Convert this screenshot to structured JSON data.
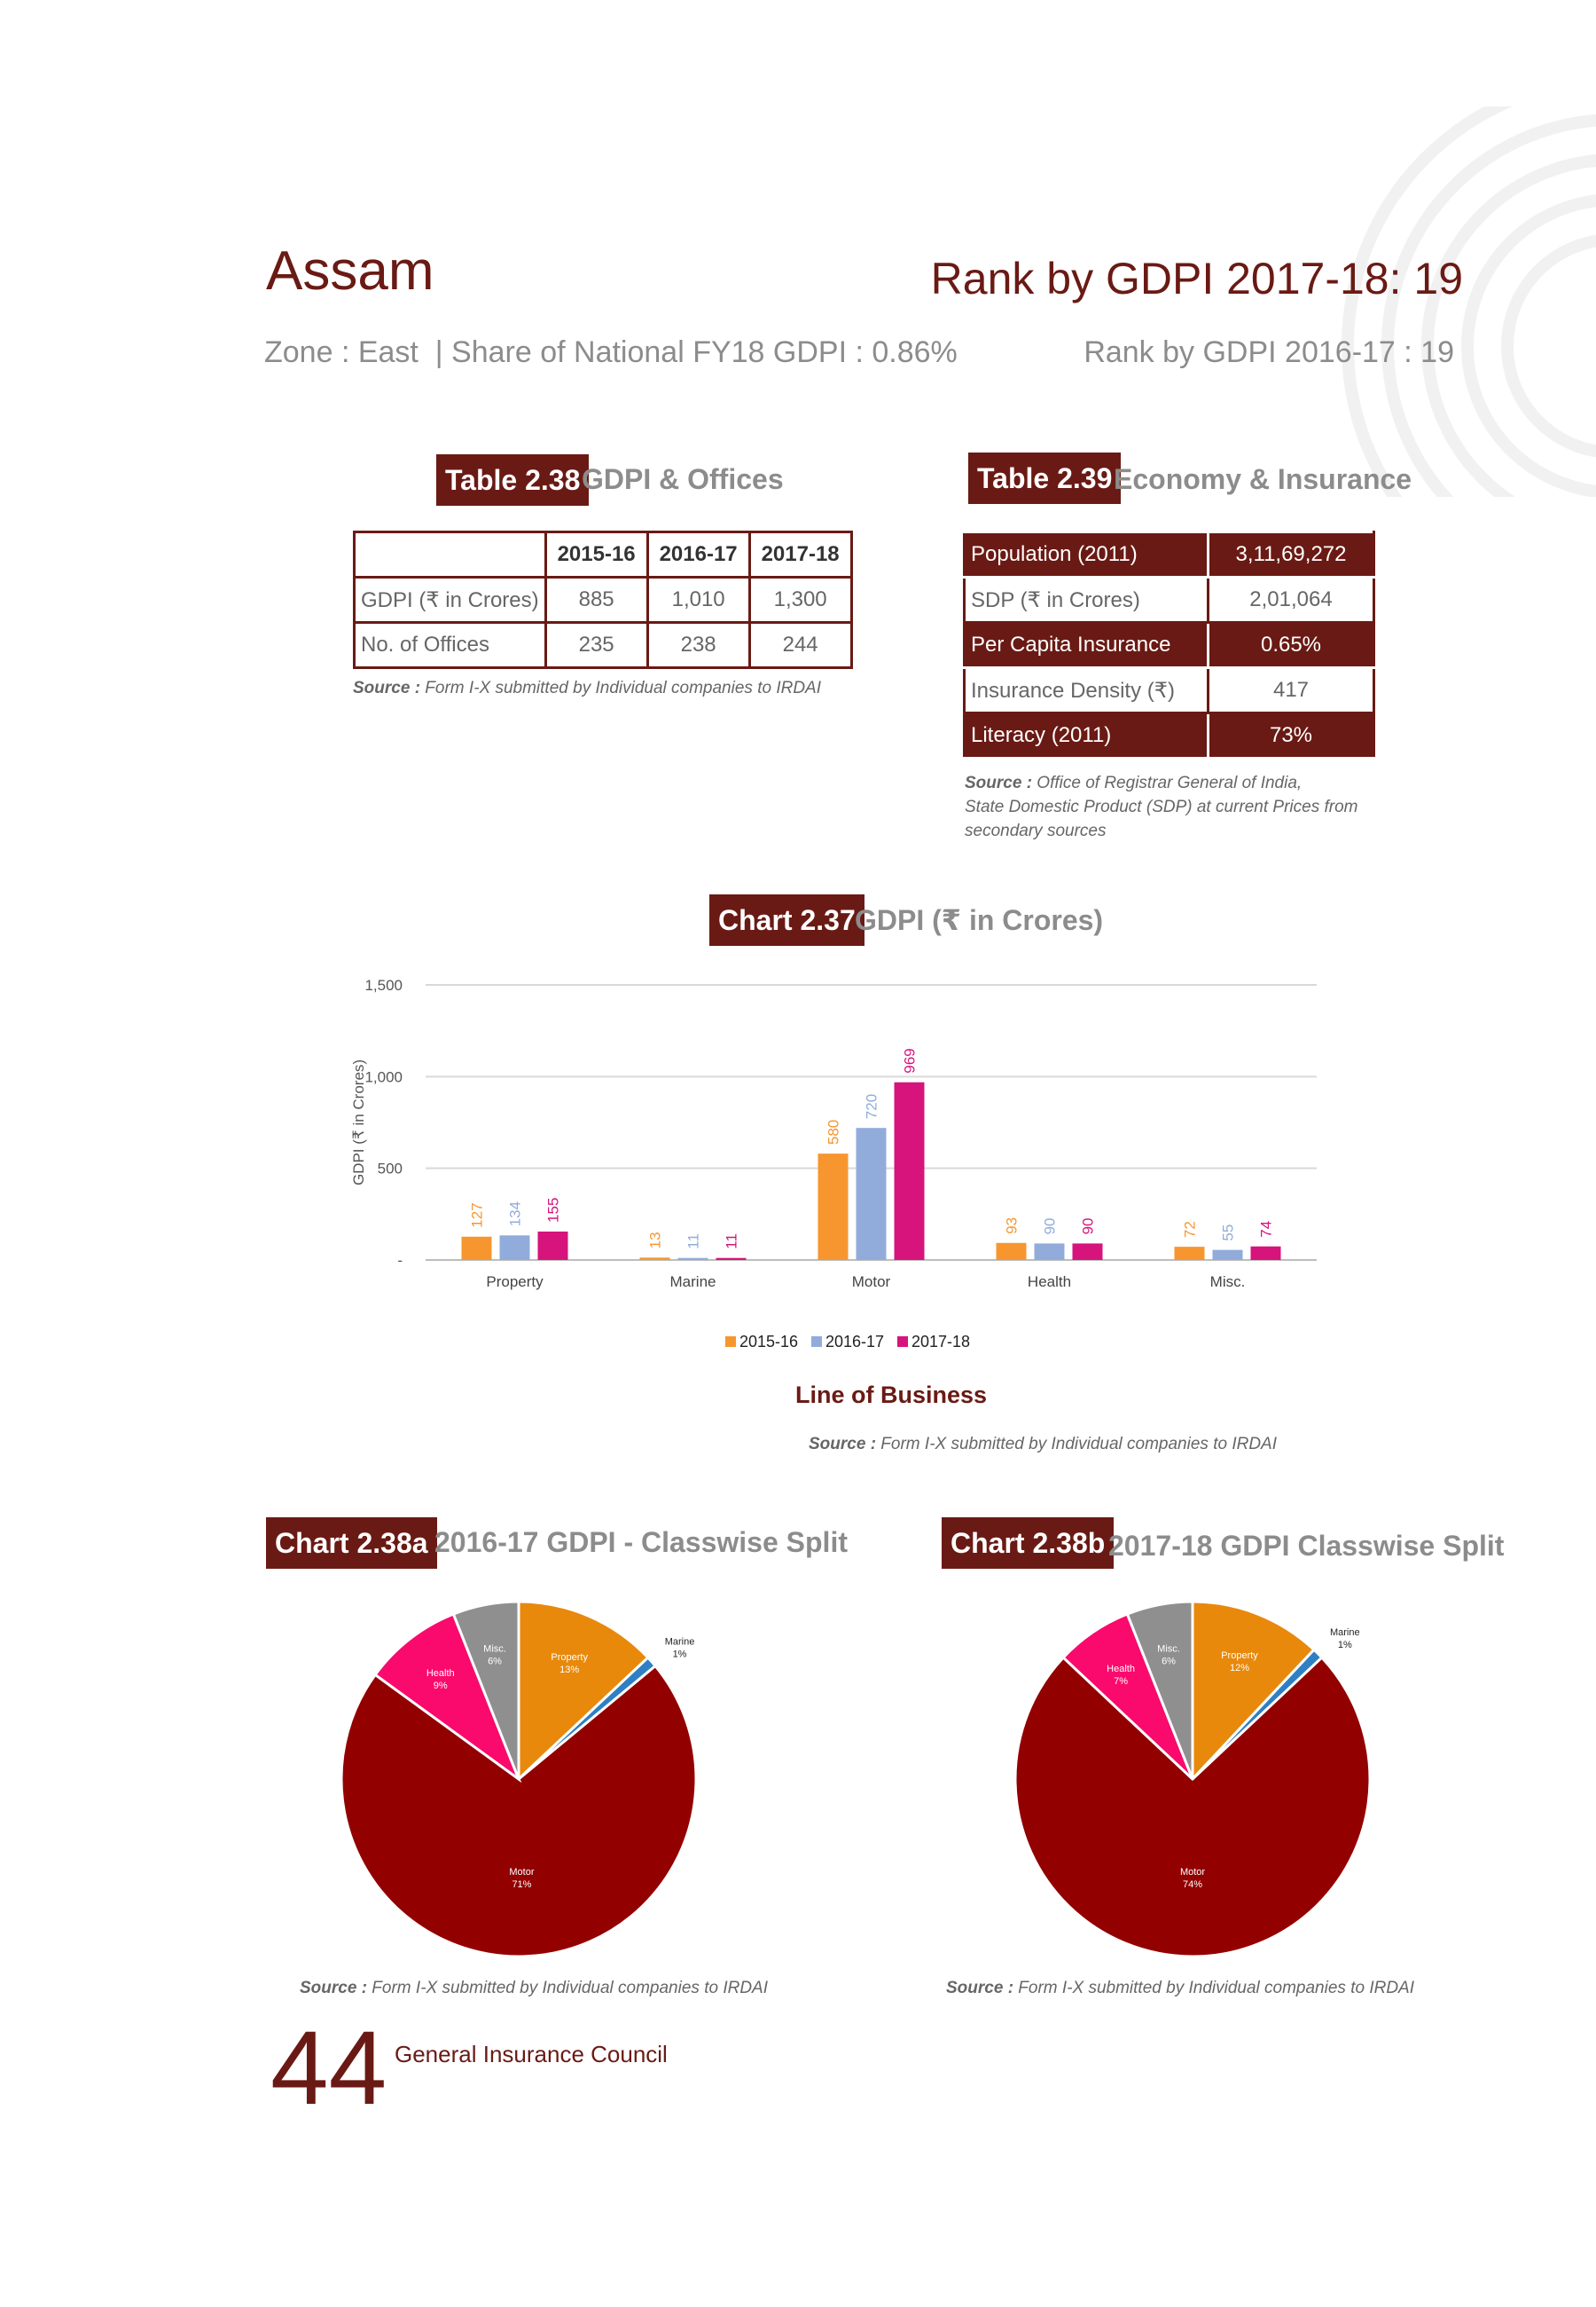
{
  "header": {
    "state": "Assam",
    "rank_current": "Rank by GDPI 2017-18: 19",
    "zone_share": "Zone : East  | Share of National FY18 GDPI : 0.86%",
    "rank_previous": "Rank by GDPI 2016-17 : 19"
  },
  "table_238": {
    "tag": "Table 2.38",
    "title": "GDPI & Offices",
    "columns": [
      "",
      "2015-16",
      "2016-17",
      "2017-18"
    ],
    "rows": [
      {
        "label": "GDPI (₹ in Crores)",
        "values": [
          "885",
          "1,010",
          "1,300"
        ]
      },
      {
        "label": "No. of Offices",
        "values": [
          "235",
          "238",
          "244"
        ]
      }
    ],
    "source_label": "Source :",
    "source_text": " Form I-X submitted by Individual companies to IRDAI"
  },
  "table_239": {
    "tag": "Table 2.39",
    "title": "Economy & Insurance",
    "rows": [
      {
        "label": "Population (2011)",
        "value": "3,11,69,272"
      },
      {
        "label": "SDP (₹ in Crores)",
        "value": "2,01,064"
      },
      {
        "label": "Per Capita Insurance",
        "value": "0.65%"
      },
      {
        "label": "Insurance Density (₹)",
        "value": "417"
      },
      {
        "label": "Literacy (2011)",
        "value": "73%"
      }
    ],
    "source_label": "Source :",
    "source_line1": " Office of Registrar General of India,",
    "source_line2": "State Domestic Product (SDP) at current Prices from",
    "source_line3": "secondary sources"
  },
  "chart_237": {
    "tag": "Chart 2.37",
    "title": "GDPI (₹ in Crores)",
    "xlabel_text": "Line of Business",
    "source_label": "Source :",
    "source_text": " Form I-X submitted by Individual companies to IRDAI"
  },
  "chart_238a": {
    "tag": "Chart 2.38a",
    "title": "2016-17 GDPI - Classwise Split",
    "source_label": "Source :",
    "source_text": " Form I-X submitted by Individual companies to IRDAI"
  },
  "chart_238b": {
    "tag": "Chart 2.38b",
    "title": "2017-18 GDPI Classwise Split",
    "source_label": "Source :",
    "source_text": " Form I-X submitted by Individual companies to IRDAI"
  },
  "footer": {
    "page_number": "44",
    "org": "General Insurance Council"
  },
  "colors": {
    "maroon": "#6a1a14",
    "s2015": "#f7962f",
    "s2016": "#91acdb",
    "s2017": "#d6147c",
    "property": "#e8890c",
    "marine": "#2f7fc4",
    "motor": "#930000",
    "health": "#fa0a6c",
    "misc": "#8f8f8f"
  },
  "chart_data": [
    {
      "type": "bar",
      "categories": [
        "Property",
        "Marine",
        "Motor",
        "Health",
        "Misc."
      ],
      "series": [
        {
          "name": "2015-16",
          "values": [
            127,
            13,
            580,
            93,
            72
          ],
          "labels": [
            "127",
            "13",
            "580",
            "93",
            "72"
          ]
        },
        {
          "name": "2016-17",
          "values": [
            134,
            11,
            720,
            90,
            55
          ],
          "labels": [
            "134",
            "11",
            "720",
            "90",
            "55"
          ]
        },
        {
          "name": "2017-18",
          "values": [
            155,
            11,
            969,
            90,
            74
          ],
          "labels": [
            "155",
            "11",
            "969",
            "90",
            "74"
          ]
        }
      ],
      "ylabel": "GDPI (₹ in Crores)",
      "xlabel": "Line of Business",
      "ylim": [
        0,
        1500
      ],
      "yticks": [
        0,
        500,
        1000,
        1500
      ],
      "ytick_labels": [
        "-",
        "500",
        "1,000",
        "1,500"
      ],
      "grid": true,
      "legend": "bottom"
    },
    {
      "type": "pie",
      "title": "2016-17 GDPI - Classwise Split",
      "slices": [
        {
          "name": "Property",
          "value": 13,
          "label": "13%"
        },
        {
          "name": "Marine",
          "value": 1,
          "label": "1%"
        },
        {
          "name": "Motor",
          "value": 71,
          "label": "71%"
        },
        {
          "name": "Health",
          "value": 9,
          "label": "9%"
        },
        {
          "name": "Misc.",
          "value": 6,
          "label": "6%"
        }
      ]
    },
    {
      "type": "pie",
      "title": "2017-18 GDPI Classwise Split",
      "slices": [
        {
          "name": "Property",
          "value": 12,
          "label": "12%"
        },
        {
          "name": "Marine",
          "value": 1,
          "label": "1%"
        },
        {
          "name": "Motor",
          "value": 74,
          "label": "74%"
        },
        {
          "name": "Health",
          "value": 7,
          "label": "7%"
        },
        {
          "name": "Misc.",
          "value": 6,
          "label": "6%"
        }
      ]
    }
  ]
}
